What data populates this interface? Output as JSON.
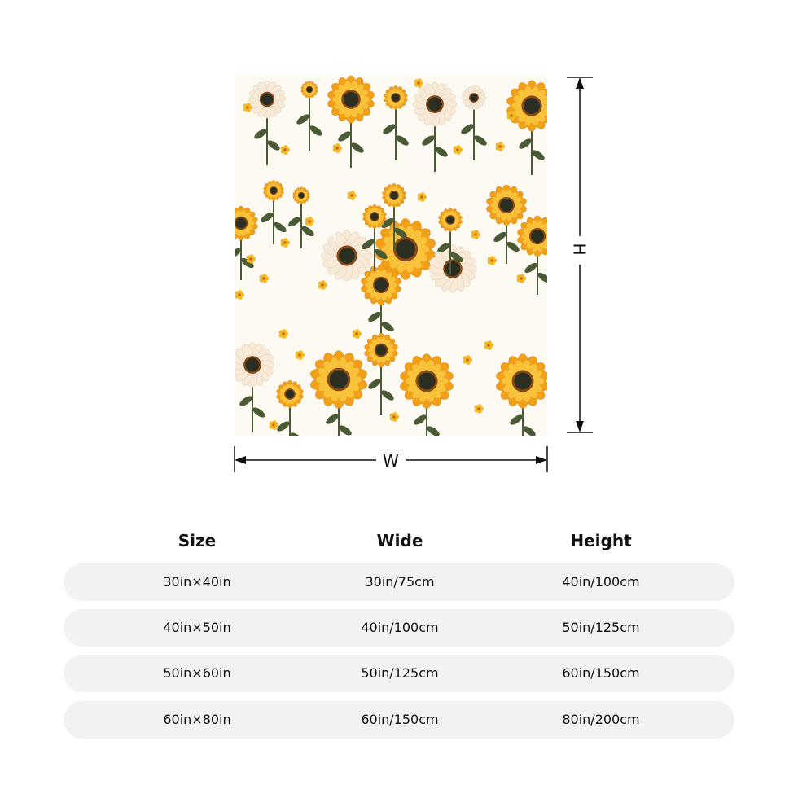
{
  "dimension_labels": {
    "width": "W",
    "height": "H"
  },
  "table": {
    "headers": [
      "Size",
      "Wide",
      "Height"
    ],
    "rows": [
      [
        "30in×40in",
        "30in/75cm",
        "40in/100cm"
      ],
      [
        "40in×50in",
        "40in/100cm",
        "50in/125cm"
      ],
      [
        "50in×60in",
        "50in/125cm",
        "60in/150cm"
      ],
      [
        "60in×80in",
        "60in/150cm",
        "80in/200cm"
      ]
    ],
    "row_background": "#f2f2f2"
  },
  "colors": {
    "sunflower_petal": "#f2a01a",
    "sunflower_petal_light": "#f8c23a",
    "daisy_petal": "#f7ead8",
    "flower_center": "#2b2f22",
    "leaf": "#4a5a35",
    "background": "#fcfaf2"
  }
}
